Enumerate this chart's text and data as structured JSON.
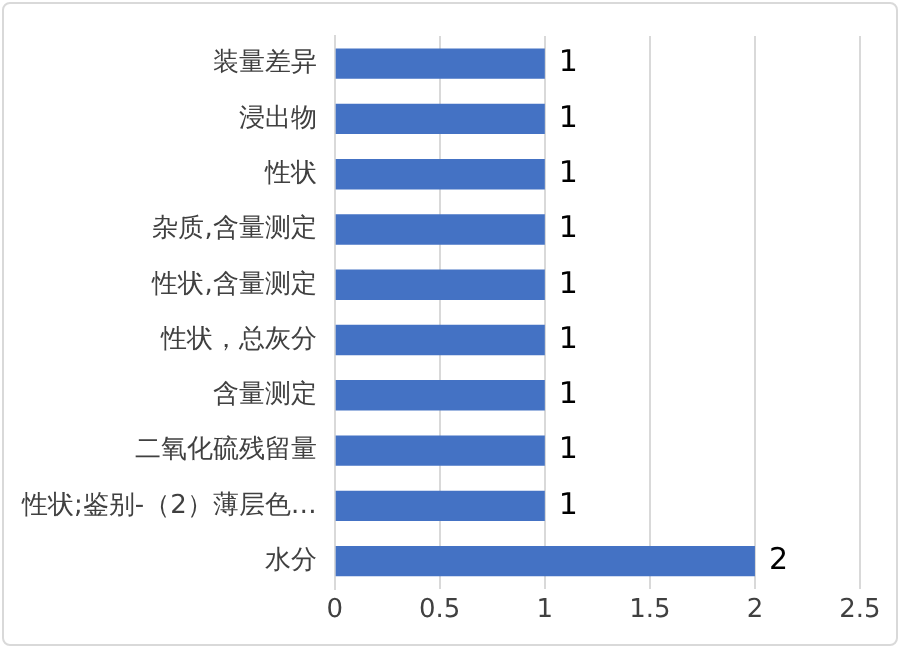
{
  "chart_data": {
    "type": "bar",
    "orientation": "horizontal",
    "categories": [
      "装量差异",
      "浸出物",
      "性状",
      "杂质,含量测定",
      "性状,含量测定",
      "性状，总灰分",
      "含量测定",
      "二氧化硫残留量",
      "性状;鉴别-（2）薄层色…",
      "水分"
    ],
    "values": [
      1,
      1,
      1,
      1,
      1,
      1,
      1,
      1,
      1,
      2
    ],
    "color": "#4472c4",
    "xlim": [
      0,
      2.5
    ],
    "xticks": [
      0,
      0.5,
      1,
      1.5,
      2,
      2.5
    ],
    "grid": "x",
    "data_labels": true
  }
}
